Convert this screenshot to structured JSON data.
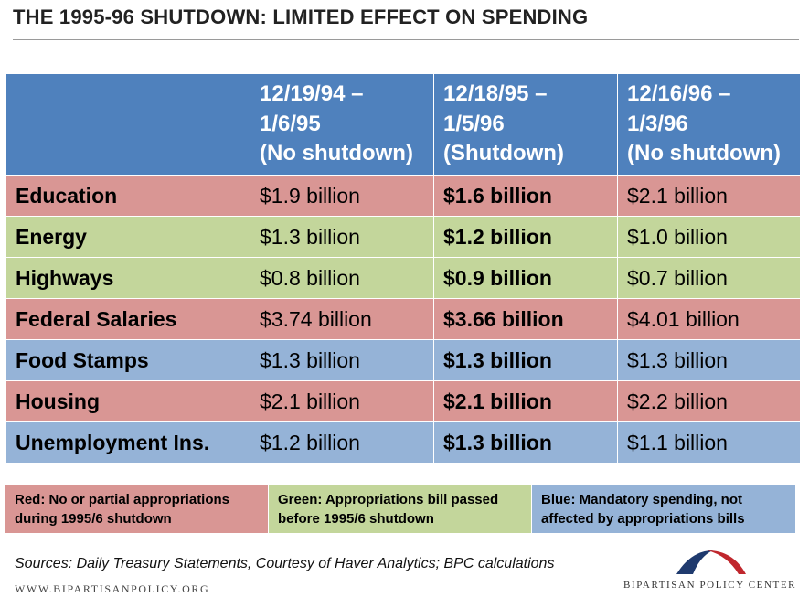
{
  "title": "THE 1995-96  SHUTDOWN: LIMITED EFFECT ON SPENDING",
  "table": {
    "headers": [
      "",
      [
        "12/19/94 –",
        "1/6/95",
        "(No shutdown)"
      ],
      [
        "12/18/95 –",
        "1/5/96",
        "(Shutdown)"
      ],
      [
        "12/16/96 –",
        "1/3/96",
        "(No shutdown)"
      ]
    ],
    "rows": [
      {
        "category": "Education",
        "color": "red",
        "values": [
          "$1.9 billion",
          "$1.6 billion",
          "$2.1 billion"
        ]
      },
      {
        "category": "Energy",
        "color": "green",
        "values": [
          "$1.3 billion",
          "$1.2 billion",
          "$1.0 billion"
        ]
      },
      {
        "category": "Highways",
        "color": "green",
        "values": [
          "$0.8 billion",
          "$0.9 billion",
          "$0.7 billion"
        ]
      },
      {
        "category": "Federal Salaries",
        "color": "red",
        "values": [
          "$3.74 billion",
          "$3.66 billion",
          "$4.01 billion"
        ]
      },
      {
        "category": "Food Stamps",
        "color": "blue",
        "values": [
          "$1.3 billion",
          "$1.3 billion",
          "$1.3 billion"
        ]
      },
      {
        "category": "Housing",
        "color": "red",
        "values": [
          "$2.1 billion",
          "$2.1 billion",
          "$2.2 billion"
        ]
      },
      {
        "category": "Unemployment Ins.",
        "color": "blue",
        "values": [
          "$1.2 billion",
          "$1.3 billion",
          "$1.1 billion"
        ]
      }
    ]
  },
  "legend": {
    "red": "Red: No or partial appropriations during 1995/6 shutdown",
    "green": "Green: Appropriations bill passed before 1995/6 shutdown",
    "blue": "Blue: Mandatory spending, not affected by appropriations bills"
  },
  "colors": {
    "header": "#4f81bd",
    "red": "#d99694",
    "green": "#c3d69b",
    "blue": "#95b3d7",
    "logo_red": "#c0272d",
    "logo_blue": "#1f3a6e"
  },
  "footer": {
    "sources": "Sources: Daily Treasury Statements, Courtesy of Haver Analytics; BPC calculations",
    "website": "WWW.BIPARTISANPOLICY.ORG",
    "logo_text": "BIPARTISAN POLICY CENTER",
    "logo_icon": "bpc-arc-logo-icon"
  }
}
